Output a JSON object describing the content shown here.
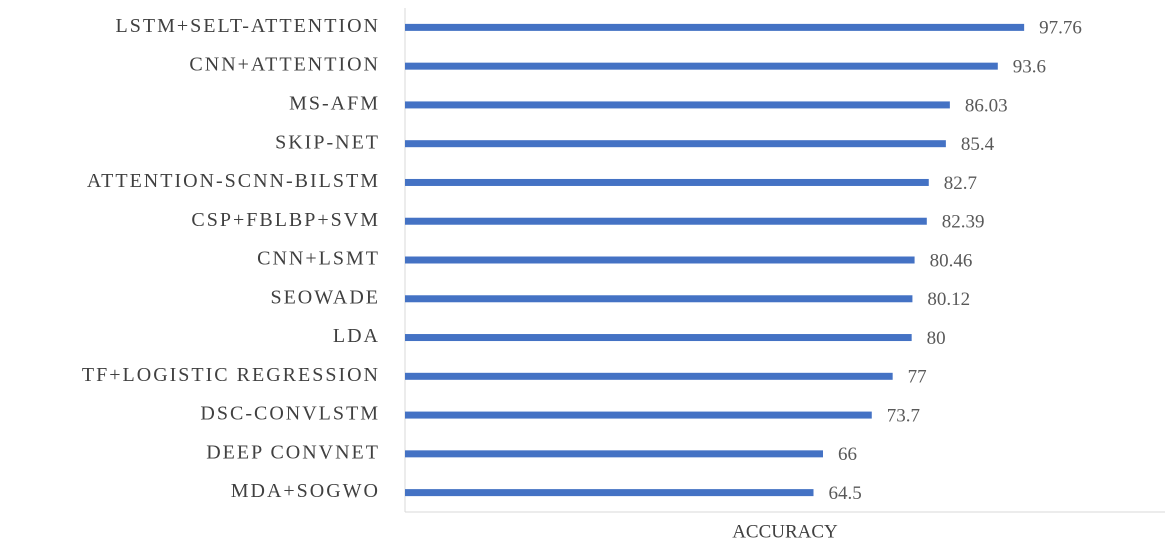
{
  "chart_data": {
    "type": "hbar",
    "categories": [
      "LSTM+SELT-ATTENTION",
      "CNN+ATTENTION",
      "MS-AFM",
      "SKIP-NET",
      "ATTENTION-SCNN-BILSTM",
      "CSP+FBLBP+SVM",
      "CNN+LSMT",
      "SEOWADE",
      "LDA",
      "TF+LOGISTIC REGRESSION",
      "DSC-CONVLSTM",
      "DEEP CONVNET",
      "MDA+SOGWO"
    ],
    "values": [
      97.76,
      93.6,
      86.03,
      85.4,
      82.7,
      82.39,
      80.46,
      80.12,
      80,
      77,
      73.7,
      66,
      64.5
    ],
    "color": "#4472c4",
    "xlabel": "ACCURACY",
    "xlim": [
      0,
      120
    ]
  }
}
